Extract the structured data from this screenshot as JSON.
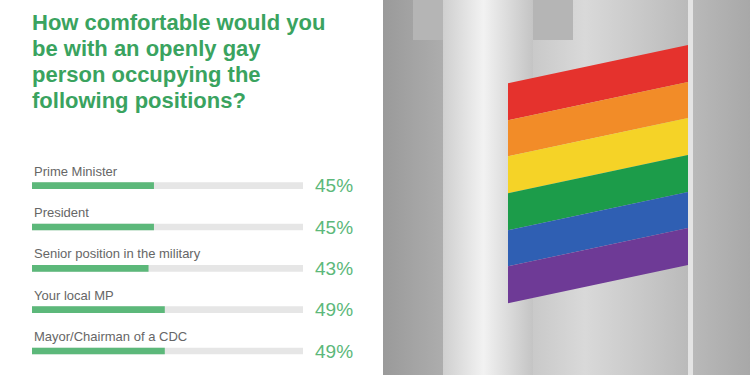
{
  "chart_data": {
    "type": "bar",
    "orientation": "horizontal",
    "title": "How comfortable would you be with an openly gay person occupying the following positions?",
    "categories": [
      "Prime Minister",
      "President",
      "Senior position in the military",
      "Your local MP",
      "Mayor/Chairman of a CDC"
    ],
    "values": [
      45,
      45,
      43,
      49,
      49
    ],
    "value_labels": [
      "45%",
      "45%",
      "43%",
      "49%",
      "49%"
    ],
    "color": "#5cb87a",
    "xlim": [
      0,
      100
    ],
    "tick_labels": false,
    "grid": false,
    "data_labels": true
  }
}
